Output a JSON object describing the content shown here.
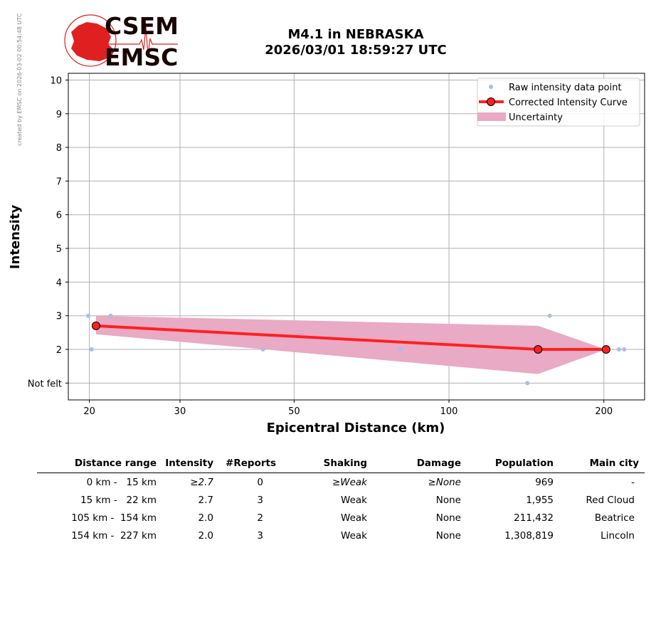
{
  "header": {
    "logo_top": "CSEM",
    "logo_bottom": "EMSC",
    "title_line1": "M4.1 in NEBRASKA",
    "title_line2": "2026/03/01 18:59:27 UTC",
    "side_note": "created by EMSC on 2026-03-02 00:54:48 UTC"
  },
  "colors": {
    "raw_points": "#aabde9",
    "curve": "#ff2020",
    "uncertainty": "#e8aac4",
    "grid": "#b0b0b0",
    "logo_red": "#e02020",
    "logo_dark": "#1a0505"
  },
  "chart_data": {
    "type": "line",
    "xscale": "log",
    "xlim": [
      18.2,
      240
    ],
    "ylim": [
      0.5,
      10.2
    ],
    "xticks": [
      20,
      30,
      50,
      100,
      200
    ],
    "yticks": [
      1,
      2,
      3,
      4,
      5,
      6,
      7,
      8,
      9,
      10
    ],
    "yticklabels": [
      "Not felt",
      "2",
      "3",
      "4",
      "5",
      "6",
      "7",
      "8",
      "9",
      "10"
    ],
    "xlabel": "Epicentral Distance (km)",
    "ylabel": "Intensity",
    "grid": true,
    "legend_position": "top-right",
    "series": [
      {
        "name": "Raw intensity data point",
        "kind": "scatter",
        "points": [
          [
            19.9,
            3
          ],
          [
            20.2,
            2
          ],
          [
            22,
            3
          ],
          [
            43.5,
            2
          ],
          [
            80.5,
            2
          ],
          [
            142,
            1
          ],
          [
            157,
            3
          ],
          [
            214,
            2
          ],
          [
            219,
            2
          ]
        ]
      },
      {
        "name": "Corrected Intensity Curve",
        "kind": "line",
        "points": [
          [
            20.6,
            2.7
          ],
          [
            149,
            2.0
          ],
          [
            202,
            2.0
          ]
        ]
      },
      {
        "name": "Uncertainty",
        "kind": "band",
        "x": [
          20.6,
          149,
          202
        ],
        "lower": [
          2.45,
          1.27,
          2.0
        ],
        "upper": [
          3.0,
          2.7,
          2.0
        ]
      }
    ]
  },
  "table": {
    "headers": [
      "Distance range",
      "Intensity",
      "#Reports",
      "Shaking",
      "Damage",
      "Population",
      "Main city"
    ],
    "rows": [
      {
        "range": "0 km -   15 km",
        "intensity": "≥2.7",
        "reports": "0",
        "shaking": "≥Weak",
        "damage": "≥None",
        "population": "969",
        "city": "-"
      },
      {
        "range": "15 km -   22 km",
        "intensity": "2.7",
        "reports": "3",
        "shaking": "Weak",
        "damage": "None",
        "population": "1,955",
        "city": "Red Cloud"
      },
      {
        "range": "105 km -  154 km",
        "intensity": "2.0",
        "reports": "2",
        "shaking": "Weak",
        "damage": "None",
        "population": "211,432",
        "city": "Beatrice"
      },
      {
        "range": "154 km -  227 km",
        "intensity": "2.0",
        "reports": "3",
        "shaking": "Weak",
        "damage": "None",
        "population": "1,308,819",
        "city": "Lincoln"
      }
    ]
  }
}
